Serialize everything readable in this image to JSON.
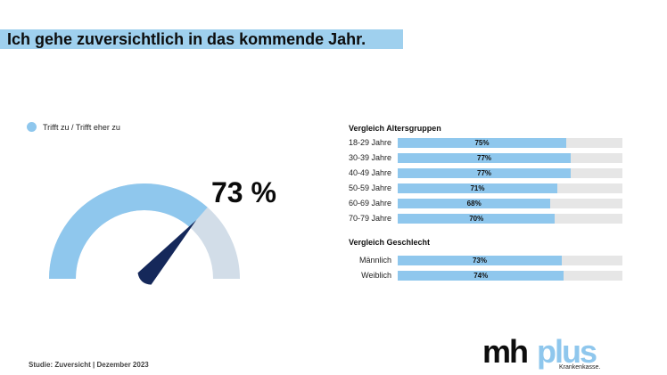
{
  "headline": "Ich gehe zuversichtlich in das kommende Jahr.",
  "legend": {
    "label": "Trifft zu / Trifft eher zu",
    "color": "#8fc7ed"
  },
  "gauge": {
    "percent_label": "73 %"
  },
  "age_section": {
    "title": "Vergleich Altersgruppen"
  },
  "gender_section": {
    "title": "Vergleich Geschlecht"
  },
  "footer": "Studie: Zuversicht | Dezember 2023",
  "logo": {
    "mh": "mh",
    "plus": "plus",
    "sub": "Krankenkasse."
  },
  "colors": {
    "accent": "#8fc7ed",
    "track": "#e6e6e6",
    "gauge_rest": "#d2dde8",
    "needle": "#15285a"
  },
  "chart_data": [
    {
      "type": "gauge",
      "value": 73,
      "max": 100,
      "series": [
        {
          "name": "Trifft zu / Trifft eher zu",
          "values": [
            73
          ]
        }
      ]
    },
    {
      "type": "bar",
      "title": "Vergleich Altersgruppen",
      "categories": [
        "18-29 Jahre",
        "30-39 Jahre",
        "40-49 Jahre",
        "50-59 Jahre",
        "60-69 Jahre",
        "70-79 Jahre"
      ],
      "values": [
        75,
        77,
        77,
        71,
        68,
        70
      ],
      "value_labels": [
        "75%",
        "77%",
        "77%",
        "71%",
        "68%",
        "70%"
      ],
      "ylim": [
        0,
        100
      ]
    },
    {
      "type": "bar",
      "title": "Vergleich Geschlecht",
      "categories": [
        "Männlich",
        "Weiblich"
      ],
      "values": [
        73,
        74
      ],
      "value_labels": [
        "73%",
        "74%"
      ],
      "ylim": [
        0,
        100
      ]
    }
  ]
}
